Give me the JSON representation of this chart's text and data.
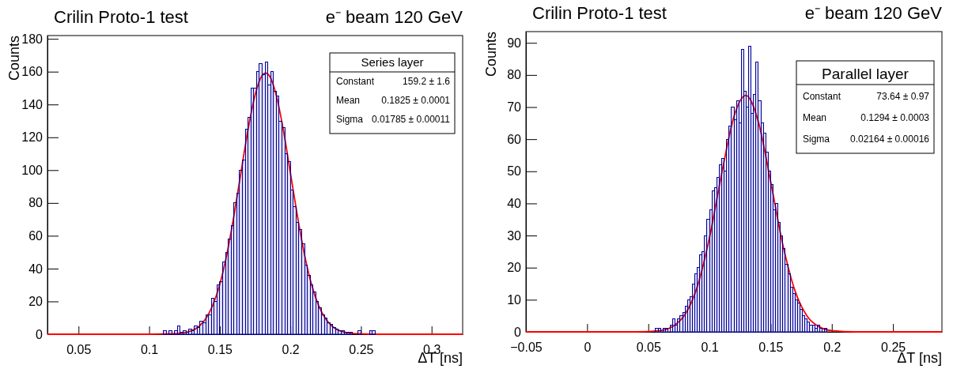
{
  "chart_data": [
    {
      "type": "histogram",
      "title": "Crilin Proto-1 test",
      "subtitle": "e⁻ beam 120 GeV",
      "xlabel": "ΔT [ns]",
      "ylabel": "Counts",
      "xlim": [
        0.028,
        0.322
      ],
      "ylim": [
        0,
        182
      ],
      "xticks": [
        0.05,
        0.1,
        0.15,
        0.2,
        0.25,
        0.3
      ],
      "yticks": [
        0,
        20,
        40,
        60,
        80,
        100,
        120,
        140,
        160,
        180
      ],
      "annotations": [
        "Series layer",
        "Constant 159.2 ± 1.6",
        "Mean 0.1825 ± 0.0001",
        "Sigma 0.01785 ± 0.00011"
      ],
      "series": [
        {
          "type": "histogram",
          "color": "#000099",
          "bins": [
            0.11,
            0.112,
            0.114,
            0.116,
            0.118,
            0.12,
            0.122,
            0.124,
            0.126,
            0.128,
            0.13,
            0.132,
            0.134,
            0.136,
            0.138,
            0.14,
            0.142,
            0.144,
            0.146,
            0.148,
            0.15,
            0.152,
            0.154,
            0.156,
            0.158,
            0.16,
            0.162,
            0.164,
            0.166,
            0.168,
            0.17,
            0.172,
            0.174,
            0.176,
            0.178,
            0.18,
            0.182,
            0.184,
            0.186,
            0.188,
            0.19,
            0.192,
            0.194,
            0.196,
            0.198,
            0.2,
            0.202,
            0.204,
            0.206,
            0.208,
            0.21,
            0.212,
            0.214,
            0.216,
            0.218,
            0.22,
            0.222,
            0.224,
            0.226,
            0.228,
            0.23,
            0.232,
            0.234,
            0.236,
            0.238,
            0.24,
            0.242,
            0.244,
            0.246,
            0.248,
            0.25,
            0.252,
            0.254,
            0.256,
            0.258,
            0.26
          ],
          "values": [
            2,
            0,
            2,
            0,
            2,
            5,
            1,
            2,
            1,
            3,
            2,
            5,
            4,
            8,
            7,
            12,
            12,
            22,
            20,
            30,
            32,
            44,
            50,
            58,
            66,
            80,
            86,
            100,
            106,
            125,
            132,
            150,
            150,
            160,
            165,
            158,
            166,
            152,
            160,
            148,
            145,
            130,
            126,
            110,
            105,
            88,
            78,
            68,
            64,
            55,
            42,
            36,
            30,
            26,
            20,
            16,
            12,
            10,
            7,
            6,
            4,
            3,
            2,
            2,
            1,
            1,
            1,
            0,
            0,
            2,
            0,
            0,
            0,
            2,
            2
          ]
        },
        {
          "type": "line",
          "color": "#ff0000",
          "x": [
            0.028,
            0.1,
            0.12,
            0.125,
            0.13,
            0.135,
            0.14,
            0.145,
            0.15,
            0.155,
            0.16,
            0.165,
            0.17,
            0.175,
            0.18,
            0.1825,
            0.185,
            0.19,
            0.195,
            0.2,
            0.205,
            0.21,
            0.215,
            0.22,
            0.225,
            0.23,
            0.235,
            0.24,
            0.245,
            0.26,
            0.322
          ],
          "values": [
            0,
            0,
            0.4,
            0.9,
            2.1,
            4.6,
            9.4,
            17.5,
            30.3,
            48.6,
            72,
            98.5,
            124.6,
            145.7,
            157.7,
            159.2,
            157.7,
            145.7,
            124.6,
            98.5,
            72,
            48.6,
            30.3,
            17.5,
            9.4,
            4.6,
            2.1,
            0.9,
            0.4,
            0,
            0
          ]
        }
      ]
    },
    {
      "type": "histogram",
      "title": "Crilin Proto-1 test",
      "subtitle": "e⁻ beam 120 GeV",
      "xlabel": "ΔT [ns]",
      "ylabel": "Counts",
      "xlim": [
        -0.05,
        0.29
      ],
      "ylim": [
        0,
        93.5
      ],
      "xticks": [
        {
          "value": -0.05,
          "label": "−0.05"
        },
        0,
        0.05,
        0.1,
        0.15,
        0.2,
        0.25
      ],
      "yticks": [
        0,
        10,
        20,
        30,
        40,
        50,
        60,
        70,
        80,
        90
      ],
      "annotations": [
        "Parallel layer",
        "Constant 73.64 ± 0.97",
        "Mean 0.1294 ± 0.0003",
        "Sigma 0.02164 ± 0.00016"
      ],
      "series": [
        {
          "type": "histogram",
          "color": "#000099",
          "bins": [
            0.056,
            0.058,
            0.06,
            0.062,
            0.064,
            0.066,
            0.068,
            0.07,
            0.072,
            0.074,
            0.076,
            0.078,
            0.08,
            0.082,
            0.084,
            0.086,
            0.088,
            0.09,
            0.092,
            0.094,
            0.096,
            0.098,
            0.1,
            0.102,
            0.104,
            0.106,
            0.108,
            0.11,
            0.112,
            0.114,
            0.116,
            0.118,
            0.12,
            0.122,
            0.124,
            0.126,
            0.128,
            0.13,
            0.132,
            0.134,
            0.136,
            0.138,
            0.14,
            0.142,
            0.144,
            0.146,
            0.148,
            0.15,
            0.152,
            0.154,
            0.156,
            0.158,
            0.16,
            0.162,
            0.164,
            0.166,
            0.168,
            0.17,
            0.172,
            0.174,
            0.176,
            0.178,
            0.18,
            0.182,
            0.184,
            0.186,
            0.188,
            0.19,
            0.192,
            0.194,
            0.196
          ],
          "values": [
            1,
            1,
            0,
            1,
            1,
            0,
            2,
            4,
            2,
            4,
            5,
            6,
            8,
            10,
            11,
            15,
            18,
            20,
            24,
            25,
            30,
            35,
            38,
            44,
            45,
            48,
            52,
            54,
            50,
            60,
            64,
            70,
            66,
            72,
            65,
            88,
            75,
            70,
            89,
            68,
            74,
            84,
            72,
            65,
            62,
            56,
            50,
            46,
            38,
            40,
            34,
            30,
            26,
            21,
            18,
            14,
            12,
            10,
            9,
            7,
            5,
            4,
            3,
            2,
            2,
            1,
            2,
            1,
            0,
            1
          ]
        },
        {
          "type": "line",
          "color": "#ff0000",
          "x": [
            -0.05,
            0.04,
            0.06,
            0.07,
            0.08,
            0.09,
            0.1,
            0.11,
            0.12,
            0.1294,
            0.13,
            0.14,
            0.15,
            0.16,
            0.17,
            0.18,
            0.19,
            0.2,
            0.22,
            0.29
          ],
          "values": [
            0,
            0,
            0.4,
            1.7,
            5.4,
            14,
            29.3,
            49.3,
            67,
            73.6,
            73.6,
            65.3,
            46.8,
            27.1,
            12.7,
            4.8,
            1.5,
            0.4,
            0,
            0
          ]
        }
      ]
    }
  ]
}
